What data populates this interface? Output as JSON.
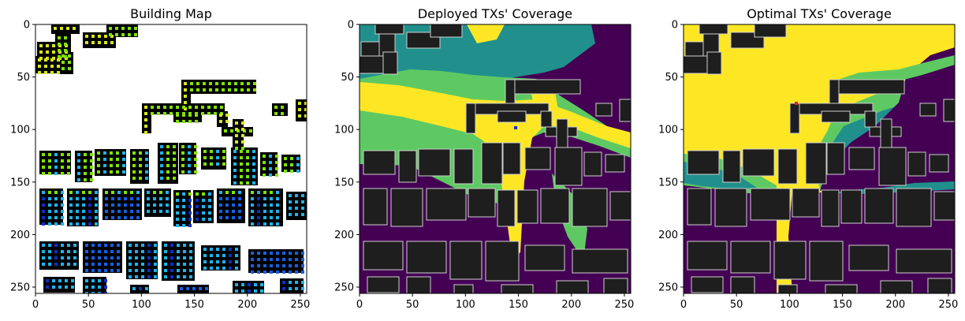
{
  "chart_data": [
    {
      "type": "heatmap",
      "title": "Building Map",
      "xlim": [
        0,
        256
      ],
      "ylim": [
        256,
        0
      ],
      "xticks": [
        0,
        50,
        100,
        150,
        200,
        250
      ],
      "yticks": [
        0,
        50,
        100,
        150,
        200,
        250
      ],
      "grid": false,
      "colors": {
        "background": "#ffffff",
        "building": "#000000",
        "tx_green": "#7fe400",
        "tx_yellow": "#d8e61a",
        "tx_cyan": "#1cb4ea",
        "tx_blue": "#1560e0",
        "tx_navy": "#0c2fc4"
      }
    },
    {
      "type": "heatmap",
      "title": "Deployed TXs' Coverage",
      "xlim": [
        0,
        256
      ],
      "ylim": [
        256,
        0
      ],
      "xticks": [
        0,
        50,
        100,
        150,
        200,
        250
      ],
      "yticks": [
        0,
        50,
        100,
        150,
        200,
        250
      ],
      "grid": false,
      "colors": {
        "level_low": "#440154",
        "level_mid": "#21908d",
        "level_high": "#5ec962",
        "level_max": "#fde725",
        "building": "#1e1e1e",
        "outline": "#cfcfcf",
        "tx_marker": "#1a2bd8"
      }
    },
    {
      "type": "heatmap",
      "title": "Optimal TXs' Coverage",
      "xlim": [
        0,
        256
      ],
      "ylim": [
        256,
        0
      ],
      "xticks": [
        0,
        50,
        100,
        150,
        200,
        250
      ],
      "yticks": [
        0,
        50,
        100,
        150,
        200,
        250
      ],
      "grid": false,
      "colors": {
        "level_low": "#440154",
        "level_mid": "#21908d",
        "level_high": "#5ec962",
        "level_max": "#fde725",
        "building": "#1e1e1e",
        "outline": "#cfcfcf",
        "tx_marker": "#ff1a1a"
      }
    }
  ]
}
